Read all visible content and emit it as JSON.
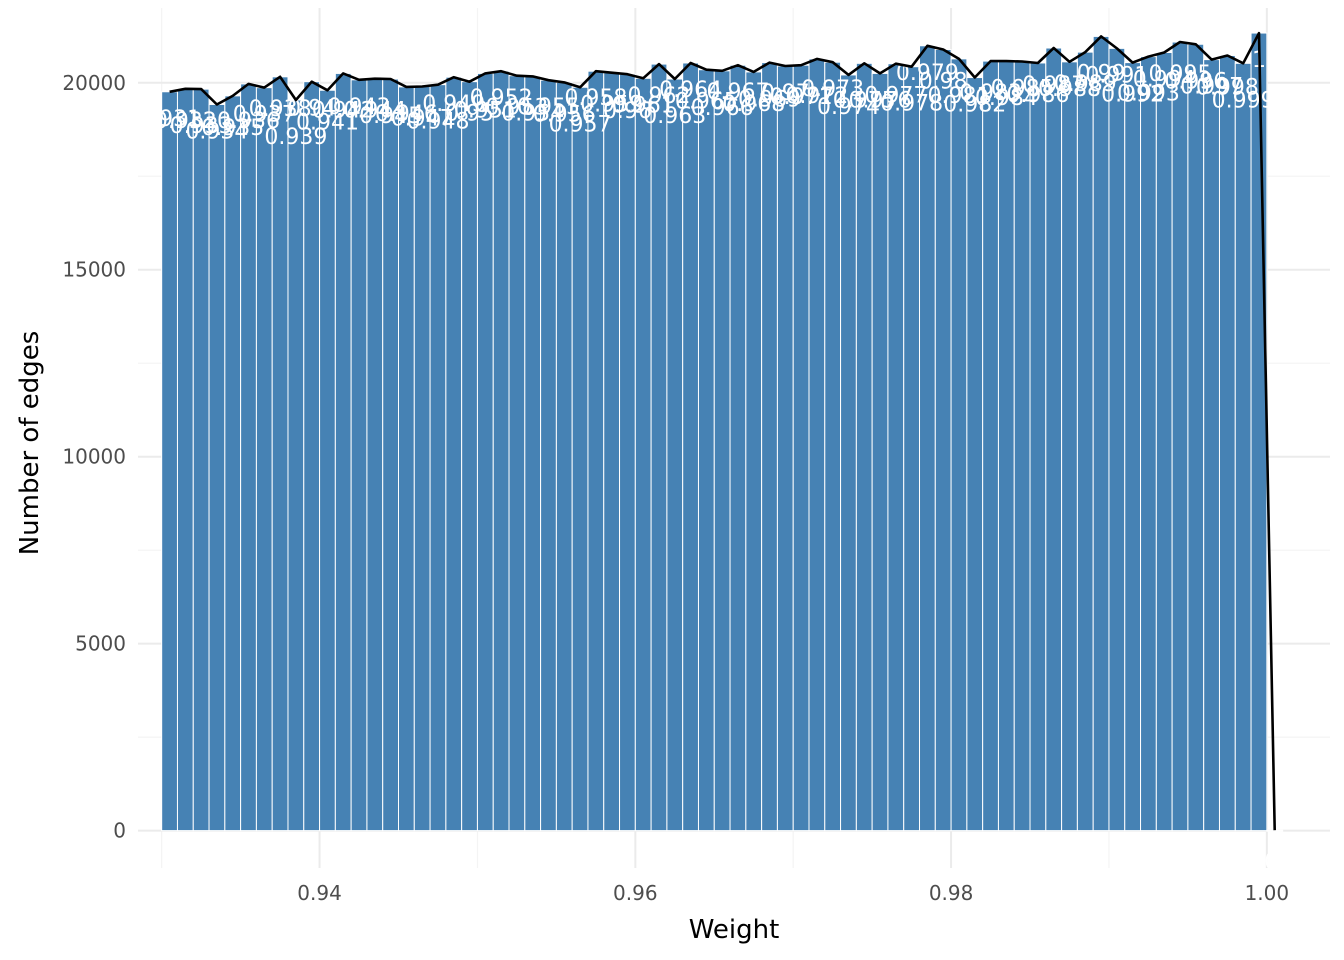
{
  "chart_data": {
    "type": "bar",
    "xlabel": "Weight",
    "ylabel": "Number of edges",
    "xlim": [
      0.9285,
      1.004
    ],
    "ylim": [
      -1000,
      22000
    ],
    "x_ticks": [
      0.94,
      0.96,
      0.98,
      1.0
    ],
    "x_tick_labels": [
      "0.94",
      "0.96",
      "0.98",
      "1.00"
    ],
    "y_ticks": [
      0,
      5000,
      10000,
      15000,
      20000
    ],
    "y_tick_labels": [
      "0",
      "5000",
      "10000",
      "15000",
      "20000"
    ],
    "bar_width": 0.001,
    "bar_color": "#4682b4",
    "line_color": "#000000",
    "grid": true,
    "legend": "none",
    "x": [
      0.9305,
      0.9315,
      0.9325,
      0.9335,
      0.9345,
      0.9355,
      0.9365,
      0.9375,
      0.9385,
      0.9395,
      0.9405,
      0.9415,
      0.9425,
      0.9435,
      0.9445,
      0.9455,
      0.9465,
      0.9475,
      0.9485,
      0.9495,
      0.9505,
      0.9515,
      0.9525,
      0.9535,
      0.9545,
      0.9555,
      0.9565,
      0.9575,
      0.9585,
      0.9595,
      0.9605,
      0.9615,
      0.9625,
      0.9635,
      0.9645,
      0.9655,
      0.9665,
      0.9675,
      0.9685,
      0.9695,
      0.9705,
      0.9715,
      0.9725,
      0.9735,
      0.9745,
      0.9755,
      0.9765,
      0.9775,
      0.9785,
      0.9795,
      0.9805,
      0.9815,
      0.9825,
      0.9835,
      0.9845,
      0.9855,
      0.9865,
      0.9875,
      0.9885,
      0.9895,
      0.9905,
      0.9915,
      0.9925,
      0.9935,
      0.9945,
      0.9955,
      0.9965,
      0.9975,
      0.9985,
      0.9995,
      1.0005
    ],
    "values": [
      19760,
      19840,
      19830,
      19420,
      19650,
      19970,
      19870,
      20160,
      19540,
      20030,
      19800,
      20250,
      20080,
      20110,
      20100,
      19890,
      19900,
      19950,
      20150,
      20030,
      20250,
      20310,
      20190,
      20170,
      20070,
      20010,
      19880,
      20310,
      20270,
      20230,
      20120,
      20500,
      20100,
      20530,
      20350,
      20320,
      20470,
      20290,
      20540,
      20450,
      20470,
      20640,
      20550,
      20210,
      20520,
      20250,
      20510,
      20430,
      20990,
      20890,
      20640,
      20140,
      20580,
      20580,
      20570,
      20530,
      20930,
      20560,
      20820,
      21240,
      20920,
      20540,
      20700,
      20810,
      21090,
      21030,
      20620,
      20730,
      20520,
      21330,
      10
    ],
    "labels": [
      "0.931",
      "0.932",
      "0.933",
      "0.934",
      "0.935",
      "0.936",
      "0.937",
      "0.938",
      "0.939",
      "0.94",
      "0.941",
      "0.942",
      "0.943",
      "0.944",
      "0.945",
      "0.946",
      "0.947",
      "0.948",
      "0.949",
      "0.95",
      "0.951",
      "0.952",
      "0.953",
      "0.954",
      "0.955",
      "0.956",
      "0.957",
      "0.958",
      "0.959",
      "0.96",
      "0.961",
      "0.962",
      "0.963",
      "0.964",
      "0.965",
      "0.966",
      "0.967",
      "0.968",
      "0.969",
      "0.97",
      "0.971",
      "0.972",
      "0.973",
      "0.974",
      "0.975",
      "0.976",
      "0.977",
      "0.978",
      "0.979",
      "0.98",
      "0.981",
      "0.982",
      "0.983",
      "0.984",
      "0.985",
      "0.986",
      "0.987",
      "0.988",
      "0.989",
      "0.99",
      "0.991",
      "0.992",
      "0.993",
      "0.994",
      "0.995",
      "0.996",
      "0.997",
      "0.998",
      "0.999",
      "1",
      "1.001"
    ]
  }
}
